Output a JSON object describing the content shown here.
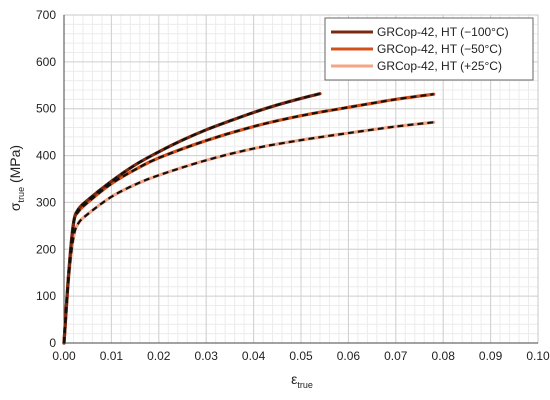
{
  "chart_data": {
    "type": "line",
    "title": "",
    "xlabel": {
      "main": "ε",
      "sub": "true"
    },
    "ylabel": {
      "main": "σ",
      "sub": "true",
      "unit": " (MPa)"
    },
    "xlim": [
      0,
      0.1
    ],
    "ylim": [
      0,
      700
    ],
    "xticks": [
      0,
      0.01,
      0.02,
      0.03,
      0.04,
      0.05,
      0.06,
      0.07,
      0.08,
      0.09,
      0.1
    ],
    "xtick_labels": [
      "0.00",
      "0.01",
      "0.02",
      "0.03",
      "0.04",
      "0.05",
      "0.06",
      "0.07",
      "0.08",
      "0.09",
      "0.10"
    ],
    "yticks": [
      0,
      100,
      200,
      300,
      400,
      500,
      600,
      700
    ],
    "ytick_labels": [
      "0",
      "100",
      "200",
      "300",
      "400",
      "500",
      "600",
      "700"
    ],
    "grid": true,
    "legend_position": "top-right",
    "series": [
      {
        "name": "GRCop-42, HT (−100°C)",
        "color": "#7a2a10",
        "fit_color": "#111111",
        "x": [
          0,
          0.001,
          0.002,
          0.003,
          0.005,
          0.01,
          0.015,
          0.02,
          0.025,
          0.03,
          0.035,
          0.04,
          0.045,
          0.05,
          0.054
        ],
        "y": [
          0,
          150,
          255,
          285,
          305,
          345,
          380,
          408,
          433,
          455,
          474,
          492,
          508,
          522,
          532
        ]
      },
      {
        "name": "GRCop-42, HT (−50°C)",
        "color": "#d4501a",
        "fit_color": "#111111",
        "x": [
          0,
          0.001,
          0.002,
          0.003,
          0.005,
          0.01,
          0.015,
          0.02,
          0.03,
          0.04,
          0.05,
          0.06,
          0.07,
          0.078
        ],
        "y": [
          0,
          150,
          255,
          280,
          300,
          340,
          370,
          395,
          432,
          462,
          485,
          503,
          520,
          531
        ]
      },
      {
        "name": "GRCop-42, HT (+25°C)",
        "color": "#f4a586",
        "fit_color": "#111111",
        "x": [
          0,
          0.001,
          0.002,
          0.003,
          0.005,
          0.01,
          0.015,
          0.02,
          0.03,
          0.04,
          0.05,
          0.06,
          0.07,
          0.078
        ],
        "y": [
          0,
          140,
          225,
          255,
          275,
          312,
          338,
          358,
          390,
          415,
          433,
          448,
          462,
          471
        ]
      }
    ]
  }
}
